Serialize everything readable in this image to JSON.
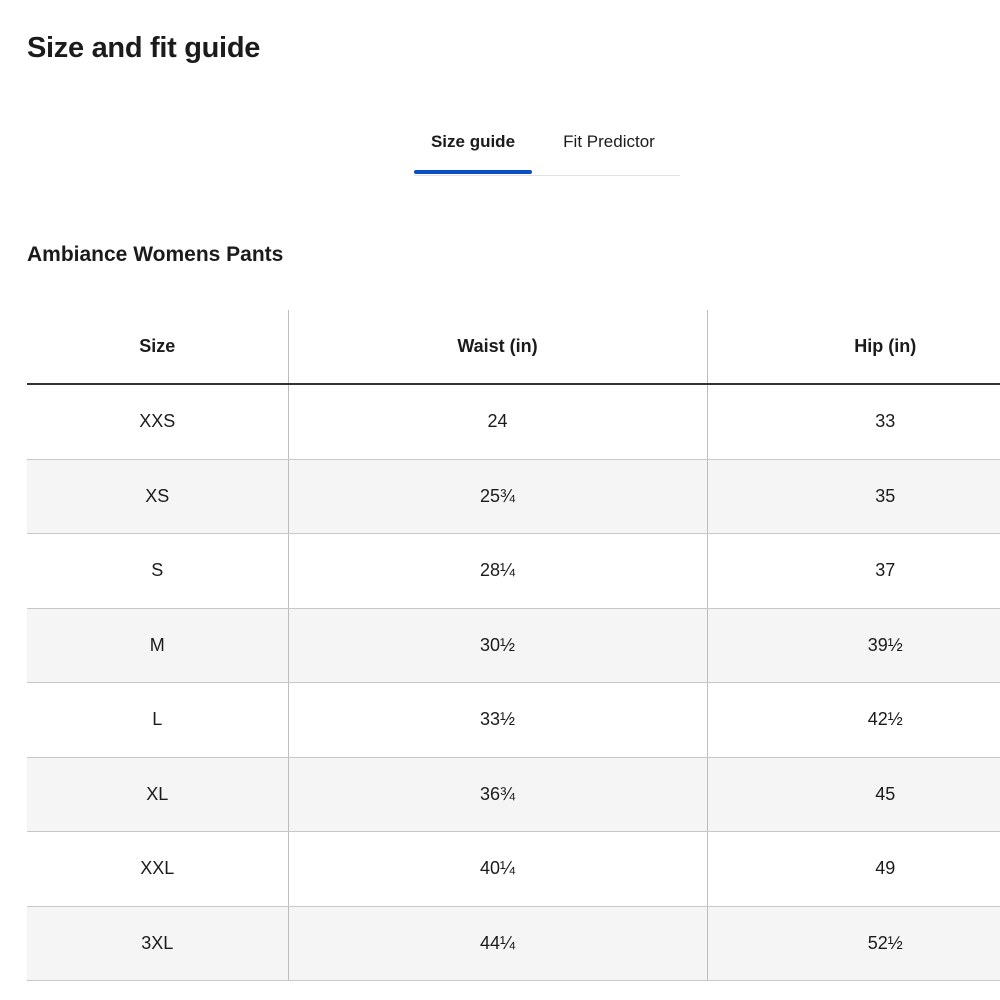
{
  "header": {
    "title": "Size and fit guide"
  },
  "tabs": [
    {
      "label": "Size guide",
      "active": true
    },
    {
      "label": "Fit Predictor",
      "active": false
    }
  ],
  "table": {
    "title": "Ambiance Womens Pants",
    "columns": [
      "Size",
      "Waist (in)",
      "Hip (in)"
    ],
    "rows": [
      [
        "XXS",
        "24",
        "33"
      ],
      [
        "XS",
        "25¾",
        "35"
      ],
      [
        "S",
        "28¼",
        "37"
      ],
      [
        "M",
        "30½",
        "39½"
      ],
      [
        "L",
        "33½",
        "42½"
      ],
      [
        "XL",
        "36¾",
        "45"
      ],
      [
        "XXL",
        "40¼",
        "49"
      ],
      [
        "3XL",
        "44¼",
        "52½"
      ]
    ]
  }
}
